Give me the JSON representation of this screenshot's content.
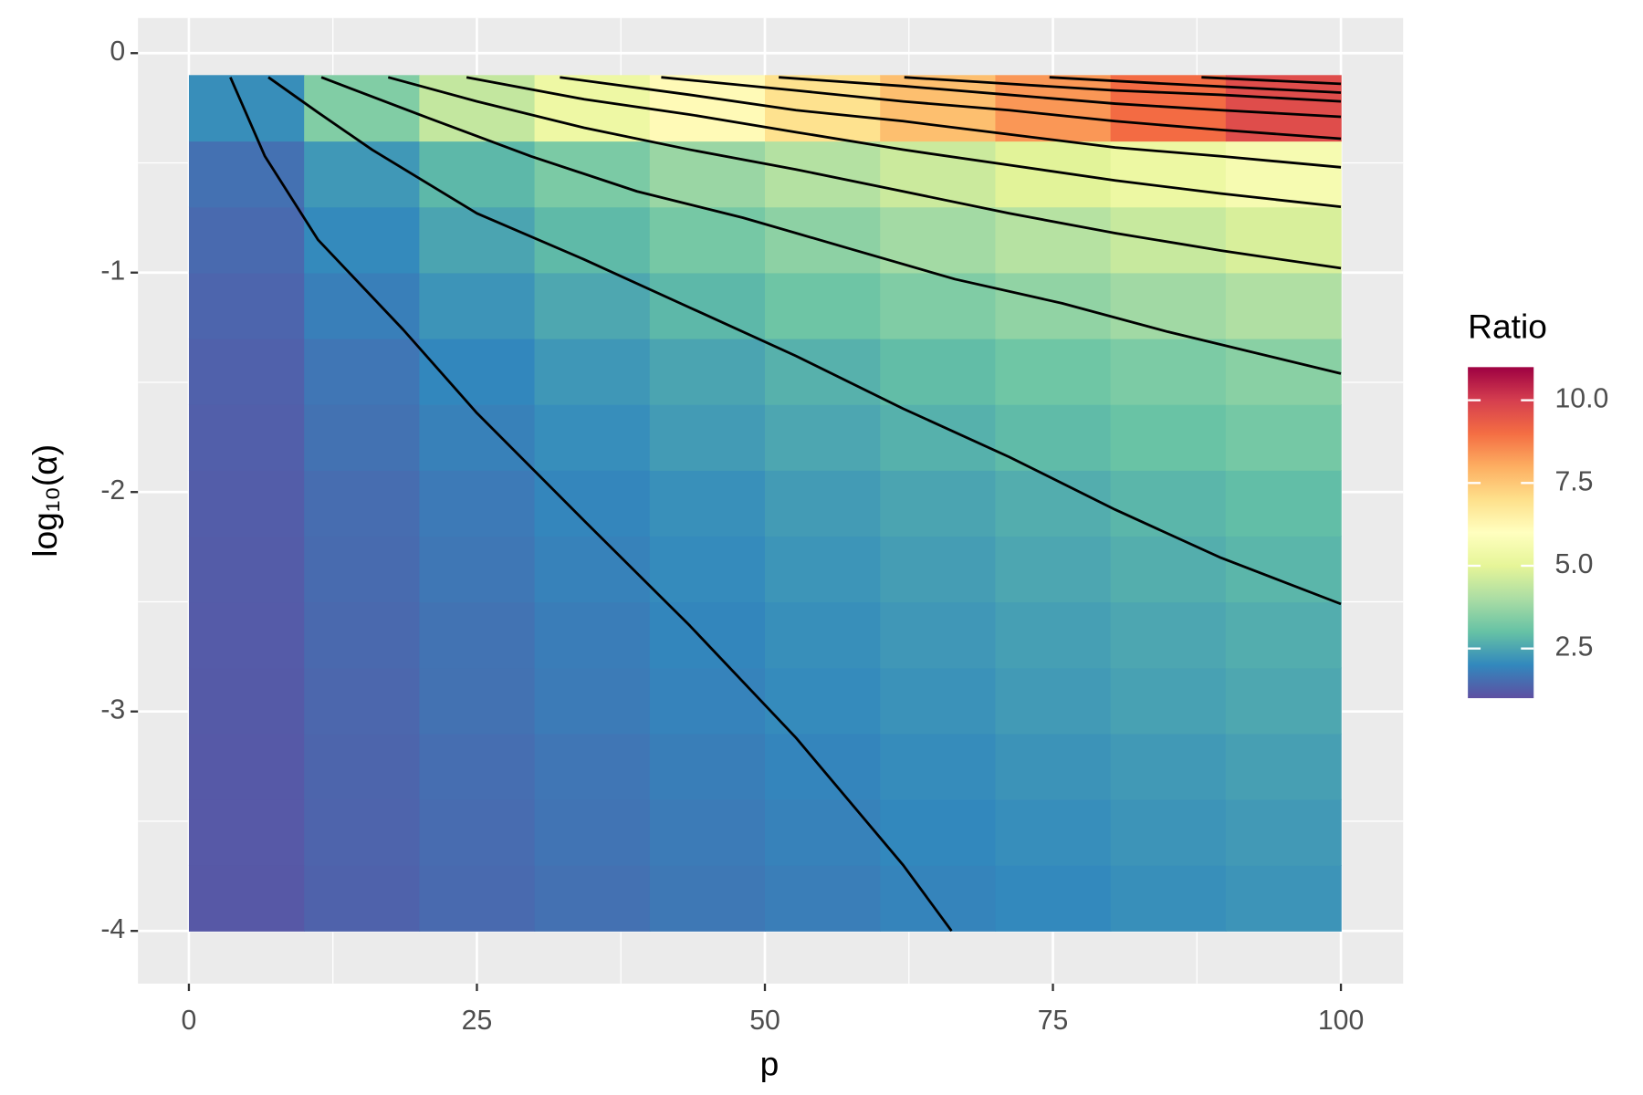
{
  "chart_data": {
    "type": "heatmap",
    "x_label": "p",
    "y_label": "log₁₀(α)",
    "legend_title": "Ratio",
    "xlim": [
      -4.42,
      105.4
    ],
    "ylim": [
      -4.24,
      0.16
    ],
    "xticks": [
      0,
      25,
      50,
      75,
      100
    ],
    "yticks": [
      -4,
      -3,
      -2,
      -1,
      0
    ],
    "minor_xticks": [
      12.5,
      37.5,
      62.5,
      87.5
    ],
    "minor_yticks": [
      -3.5,
      -2.5,
      -1.5,
      -0.5
    ],
    "grid": true,
    "legend_position": "right",
    "zlim": [
      1,
      11
    ],
    "zticks": [
      2.5,
      {
        "value": 5,
        "label": "5.0"
      },
      7.5,
      {
        "value": 10,
        "label": "10.0"
      }
    ],
    "colors": [
      "#5E4FA2",
      "#3288BD",
      "#66C2A5",
      "#ABDDA4",
      "#E6F598",
      "#FFFFBF",
      "#FEE08B",
      "#FDAE61",
      "#F46D43",
      "#D53E4F",
      "#9E0142"
    ],
    "x": [
      5,
      15,
      25,
      35,
      45,
      55,
      65,
      75,
      85,
      95
    ],
    "x_width": 10,
    "y": [
      -3.85,
      -3.55,
      -3.25,
      -2.95,
      -2.65,
      -2.35,
      -2.05,
      -1.75,
      -1.45,
      -1.15,
      -0.85,
      -0.55,
      -0.25
    ],
    "y_height": 0.3,
    "z": [
      [
        1.15,
        1.33,
        1.47,
        1.6,
        1.72,
        1.82,
        1.93,
        2.02,
        2.12,
        2.21
      ],
      [
        1.17,
        1.36,
        1.51,
        1.65,
        1.77,
        1.89,
        2.0,
        2.1,
        2.21,
        2.3
      ],
      [
        1.18,
        1.38,
        1.55,
        1.69,
        1.83,
        1.95,
        2.07,
        2.19,
        2.29,
        2.4
      ],
      [
        1.2,
        1.42,
        1.61,
        1.77,
        1.92,
        2.05,
        2.18,
        2.31,
        2.43,
        2.54
      ],
      [
        1.21,
        1.45,
        1.64,
        1.81,
        1.97,
        2.12,
        2.26,
        2.39,
        2.52,
        2.64
      ],
      [
        1.23,
        1.49,
        1.7,
        1.89,
        2.06,
        2.22,
        2.37,
        2.51,
        2.65,
        2.79
      ],
      [
        1.25,
        1.53,
        1.76,
        1.96,
        2.14,
        2.32,
        2.48,
        2.64,
        2.79,
        2.93
      ],
      [
        1.28,
        1.61,
        1.87,
        2.1,
        2.32,
        2.51,
        2.7,
        2.88,
        3.05,
        3.22
      ],
      [
        1.32,
        1.69,
        1.99,
        2.25,
        2.49,
        2.71,
        2.92,
        3.13,
        3.32,
        3.51
      ],
      [
        1.39,
        1.85,
        2.21,
        2.53,
        2.83,
        3.11,
        3.37,
        3.62,
        3.86,
        4.09
      ],
      [
        1.48,
        2.03,
        2.48,
        2.87,
        3.23,
        3.57,
        3.89,
        4.19,
        4.48,
        4.76
      ],
      [
        1.59,
        2.27,
        2.82,
        3.3,
        3.75,
        4.16,
        4.55,
        4.93,
        5.29,
        5.63
      ],
      [
        2.11,
        3.39,
        4.41,
        5.31,
        6.15,
        6.92,
        7.66,
        8.36,
        9.04,
        9.69
      ]
    ],
    "contours": [
      {
        "color": "#000000",
        "x": [
          3.6,
          6.6,
          11.2,
          18.6,
          25,
          34.3,
          43.5,
          52.7,
          62,
          66.2
        ],
        "y": [
          -0.11,
          -0.47,
          -0.85,
          -1.26,
          -1.64,
          -2.13,
          -2.61,
          -3.12,
          -3.7,
          -4.0
        ]
      },
      {
        "color": "#000000",
        "x": [
          6.9,
          11.2,
          15.9,
          25,
          34.3,
          43.5,
          52.7,
          62,
          71.2,
          80.4,
          89.6,
          100
        ],
        "y": [
          -0.11,
          -0.27,
          -0.44,
          -0.73,
          -0.94,
          -1.16,
          -1.38,
          -1.62,
          -1.84,
          -2.08,
          -2.3,
          -2.51
        ]
      },
      {
        "color": "#000000",
        "x": [
          11.5,
          20.5,
          29.7,
          38.9,
          48.1,
          57.3,
          66.5,
          75.8,
          85,
          100
        ],
        "y": [
          -0.11,
          -0.29,
          -0.47,
          -0.63,
          -0.75,
          -0.89,
          -1.03,
          -1.14,
          -1.27,
          -1.46
        ]
      },
      {
        "color": "#000000",
        "x": [
          17.3,
          25,
          34.3,
          43.5,
          52.7,
          62,
          71.2,
          80.4,
          89.6,
          100
        ],
        "y": [
          -0.11,
          -0.22,
          -0.34,
          -0.44,
          -0.53,
          -0.63,
          -0.73,
          -0.82,
          -0.9,
          -0.98
        ]
      },
      {
        "color": "#000000",
        "x": [
          24.1,
          34.3,
          43.5,
          52.7,
          62,
          71.2,
          80.4,
          89.6,
          100
        ],
        "y": [
          -0.11,
          -0.21,
          -0.28,
          -0.36,
          -0.44,
          -0.51,
          -0.58,
          -0.64,
          -0.7
        ]
      },
      {
        "color": "#000000",
        "x": [
          32.2,
          43.5,
          52.7,
          62,
          71.2,
          80.4,
          89.6,
          100
        ],
        "y": [
          -0.11,
          -0.19,
          -0.26,
          -0.31,
          -0.37,
          -0.43,
          -0.47,
          -0.52
        ]
      },
      {
        "color": "#000000",
        "x": [
          41,
          52.7,
          62,
          71.2,
          80.4,
          89.6,
          100
        ],
        "y": [
          -0.11,
          -0.17,
          -0.22,
          -0.26,
          -0.31,
          -0.35,
          -0.39
        ]
      },
      {
        "color": "#000000",
        "x": [
          51.2,
          62,
          71.2,
          80.4,
          89.6,
          100
        ],
        "y": [
          -0.11,
          -0.15,
          -0.19,
          -0.23,
          -0.26,
          -0.29
        ]
      },
      {
        "color": "#000000",
        "x": [
          62.1,
          71.2,
          80.4,
          89.6,
          100
        ],
        "y": [
          -0.11,
          -0.14,
          -0.17,
          -0.19,
          -0.22
        ]
      },
      {
        "color": "#000000",
        "x": [
          74.7,
          85,
          100
        ],
        "y": [
          -0.11,
          -0.14,
          -0.18
        ]
      },
      {
        "color": "#000000",
        "x": [
          87.9,
          100
        ],
        "y": [
          -0.11,
          -0.14
        ]
      }
    ]
  }
}
